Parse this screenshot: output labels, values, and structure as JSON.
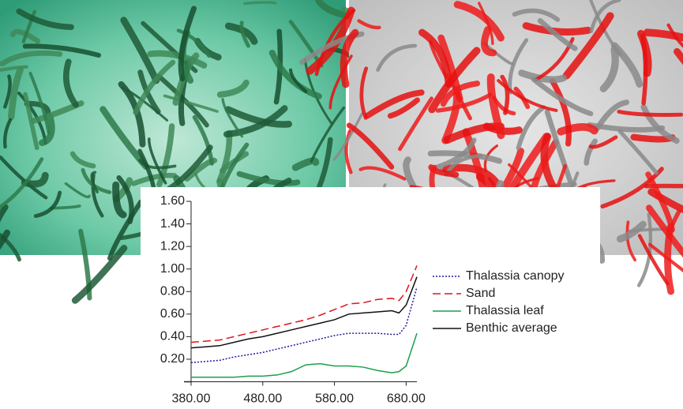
{
  "chart_data": {
    "type": "line",
    "x": [
      380,
      400,
      420,
      440,
      460,
      480,
      500,
      520,
      540,
      560,
      580,
      600,
      620,
      640,
      660,
      670,
      680,
      695
    ],
    "xlim": [
      380,
      695
    ],
    "xticks": [
      {
        "value": 380,
        "label": "380.00"
      },
      {
        "value": 480,
        "label": "480.00"
      },
      {
        "value": 580,
        "label": "580.00"
      },
      {
        "value": 680,
        "label": "680.00"
      }
    ],
    "ylim": [
      0,
      1.6
    ],
    "yticks": [
      {
        "value": 0.2,
        "label": "0.20"
      },
      {
        "value": 0.4,
        "label": "0.40"
      },
      {
        "value": 0.6,
        "label": "0.60"
      },
      {
        "value": 0.8,
        "label": "0.80"
      },
      {
        "value": 1.0,
        "label": "1.00"
      },
      {
        "value": 1.2,
        "label": "1.20"
      },
      {
        "value": 1.4,
        "label": "1.40"
      },
      {
        "value": 1.6,
        "label": "1.60"
      }
    ],
    "legend": "right",
    "series": [
      {
        "name": "Thalassia canopy",
        "color": "#1a1aa0",
        "dash": "dotted",
        "values": [
          0.17,
          0.18,
          0.19,
          0.22,
          0.24,
          0.26,
          0.29,
          0.32,
          0.35,
          0.38,
          0.41,
          0.43,
          0.43,
          0.43,
          0.42,
          0.42,
          0.5,
          0.84
        ]
      },
      {
        "name": "Sand",
        "color": "#e0141e",
        "dash": "dashed",
        "values": [
          0.35,
          0.36,
          0.37,
          0.4,
          0.43,
          0.46,
          0.49,
          0.52,
          0.55,
          0.59,
          0.64,
          0.69,
          0.7,
          0.73,
          0.74,
          0.72,
          0.8,
          1.03
        ]
      },
      {
        "name": "Thalassia leaf",
        "color": "#1aa04a",
        "dash": "solid",
        "values": [
          0.04,
          0.04,
          0.04,
          0.04,
          0.05,
          0.05,
          0.06,
          0.09,
          0.15,
          0.16,
          0.14,
          0.14,
          0.13,
          0.1,
          0.08,
          0.09,
          0.14,
          0.43
        ]
      },
      {
        "name": "Benthic average",
        "color": "#111111",
        "dash": "solid",
        "values": [
          0.3,
          0.31,
          0.32,
          0.35,
          0.38,
          0.4,
          0.43,
          0.46,
          0.49,
          0.52,
          0.55,
          0.6,
          0.61,
          0.62,
          0.63,
          0.61,
          0.68,
          0.93
        ]
      }
    ]
  }
}
